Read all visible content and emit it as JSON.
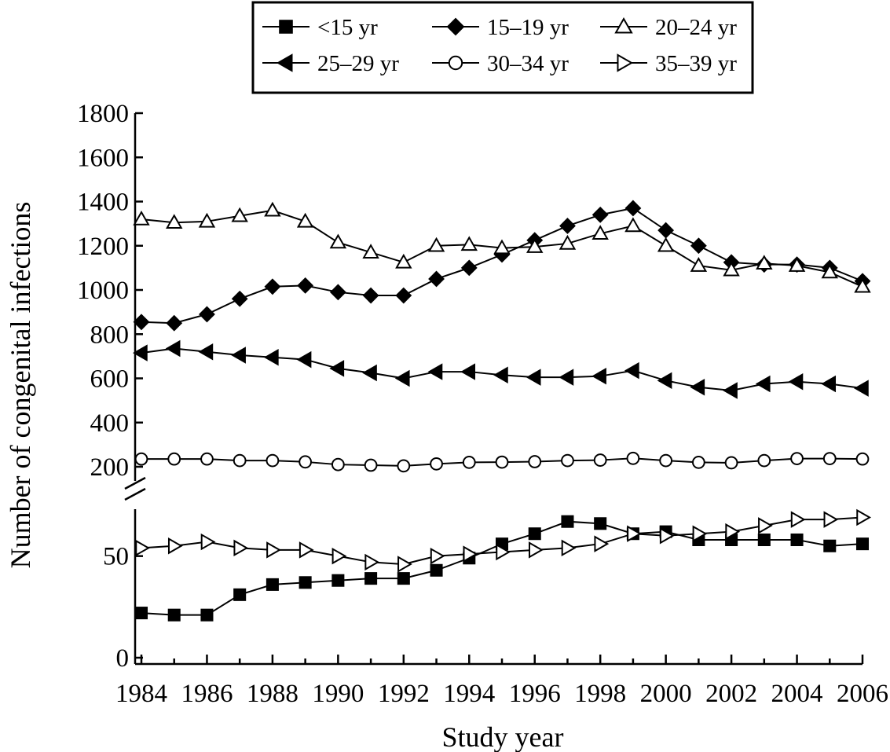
{
  "chart_data": {
    "type": "line",
    "title": "",
    "xlabel": "Study year",
    "ylabel": "Number of congenital infections",
    "x": [
      1984,
      1985,
      1986,
      1987,
      1988,
      1989,
      1990,
      1991,
      1992,
      1993,
      1994,
      1995,
      1996,
      1997,
      1998,
      1999,
      2000,
      2001,
      2002,
      2003,
      2004,
      2005,
      2006
    ],
    "x_tick_labels": [
      "1984",
      "1986",
      "1988",
      "1990",
      "1992",
      "1994",
      "1996",
      "1998",
      "2000",
      "2002",
      "2004",
      "2006"
    ],
    "y_axis_broken": true,
    "y_lower_ticks": [
      "0",
      "50"
    ],
    "y_lower_range": [
      0,
      75
    ],
    "y_upper_ticks": [
      "200",
      "400",
      "600",
      "800",
      "1000",
      "1200",
      "1400",
      "1600",
      "1800"
    ],
    "y_upper_range": [
      200,
      1800
    ],
    "legend_position": "top-center",
    "grid": false,
    "series": [
      {
        "name": "<15 yr",
        "marker": "square-filled",
        "values": [
          22,
          21,
          21,
          31,
          36,
          37,
          38,
          39,
          39,
          43,
          49,
          56,
          61,
          67,
          66,
          61,
          62,
          58,
          58,
          58,
          58,
          55,
          56
        ]
      },
      {
        "name": "15–19 yr",
        "marker": "diamond-filled",
        "values": [
          855,
          850,
          890,
          960,
          1015,
          1020,
          990,
          975,
          975,
          1050,
          1100,
          1160,
          1225,
          1290,
          1340,
          1370,
          1270,
          1200,
          1125,
          1115,
          1115,
          1100,
          1040
        ]
      },
      {
        "name": "20–24 yr",
        "marker": "triangle-up-open",
        "values": [
          1320,
          1305,
          1310,
          1335,
          1360,
          1310,
          1215,
          1170,
          1125,
          1200,
          1205,
          1190,
          1195,
          1210,
          1255,
          1290,
          1200,
          1110,
          1090,
          1120,
          1110,
          1080,
          1015
        ]
      },
      {
        "name": "25–29 yr",
        "marker": "triangle-left-filled",
        "values": [
          715,
          735,
          720,
          705,
          695,
          685,
          645,
          625,
          600,
          630,
          630,
          615,
          605,
          605,
          610,
          635,
          590,
          560,
          545,
          575,
          585,
          575,
          555
        ]
      },
      {
        "name": "30–34 yr",
        "marker": "circle-open",
        "values": [
          235,
          235,
          235,
          228,
          228,
          222,
          210,
          207,
          204,
          213,
          220,
          221,
          223,
          228,
          230,
          238,
          228,
          220,
          218,
          228,
          237,
          237,
          235
        ]
      },
      {
        "name": "35–39 yr",
        "marker": "triangle-right-open",
        "values": [
          54,
          55,
          57,
          54,
          53,
          53,
          50,
          47,
          46,
          50,
          51,
          52,
          53,
          54,
          56,
          61,
          60,
          61,
          62,
          65,
          68,
          68,
          69
        ]
      }
    ]
  }
}
